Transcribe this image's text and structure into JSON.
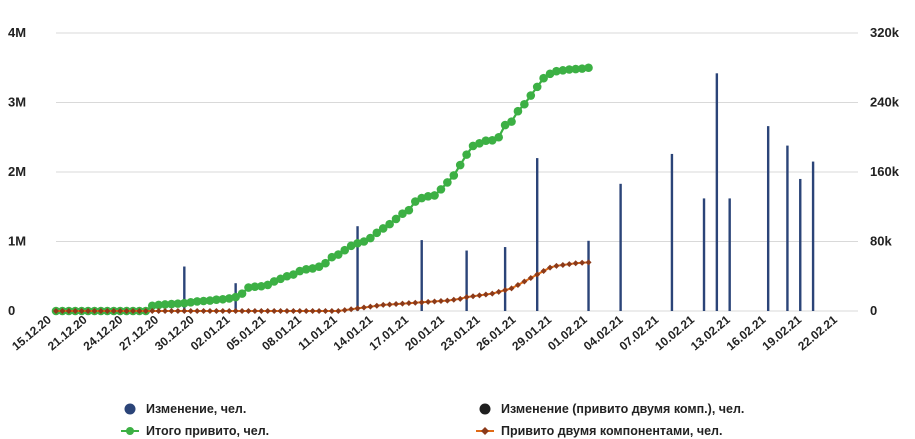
{
  "chart_data": {
    "type": "bar",
    "title": "",
    "xlabel": "",
    "ylabel_left": "",
    "ylabel_right": "",
    "x_tick_labels": [
      "15.12.20",
      "21.12.20",
      "24.12.20",
      "27.12.20",
      "30.12.20",
      "02.01.21",
      "05.01.21",
      "08.01.21",
      "11.01.21",
      "14.01.21",
      "17.01.21",
      "20.01.21",
      "23.01.21",
      "26.01.21",
      "29.01.21",
      "01.02.21",
      "04.02.21",
      "07.02.21",
      "10.02.21",
      "13.02.21",
      "16.02.21",
      "19.02.21",
      "22.02.21"
    ],
    "left_axis": {
      "range": [
        0,
        4000000
      ],
      "tick_labels": [
        "0",
        "1M",
        "2M",
        "3M",
        "4M"
      ]
    },
    "right_axis": {
      "range": [
        0,
        320000
      ],
      "tick_labels": [
        "0",
        "80k",
        "160k",
        "240k",
        "320k"
      ]
    },
    "grid": true,
    "legend_position": "bottom",
    "colors": {
      "change": "#2b4478",
      "change_two": "#1f1f1f",
      "total": "#3cb044",
      "two_comp": "#e06a15",
      "two_comp_marker": "#8b3a1a",
      "grid": "#d9d9d9"
    },
    "series": [
      {
        "name": "Изменение, чел.",
        "kind": "bar",
        "axis": "left",
        "start_date": "15.12.20",
        "values": [
          5000,
          5000,
          5000,
          5000,
          5000,
          5000,
          5000,
          5000,
          5000,
          5000,
          5000,
          5000,
          5000,
          5000,
          5000,
          5000,
          5000,
          5000,
          5000,
          5000,
          640000,
          5000,
          5000,
          5000,
          5000,
          5000,
          5000,
          5000,
          400000,
          5000,
          5000,
          5000,
          5000,
          5000,
          5000,
          5000,
          5000,
          5000,
          5000,
          5000,
          5000,
          5000,
          5000,
          5000,
          5000,
          5000,
          5000,
          1220000,
          5000,
          5000,
          5000,
          5000,
          5000,
          5000,
          5000,
          5000,
          5000,
          1020000,
          5000,
          5000,
          5000,
          5000,
          5000,
          5000,
          870000,
          5000,
          5000,
          5000,
          5000,
          5000,
          920000,
          5000,
          5000,
          5000,
          5000,
          2200000,
          5000,
          5000,
          5000,
          5000,
          5000,
          5000,
          5000,
          1010000,
          5000,
          5000,
          5000,
          5000,
          1830000,
          5000,
          5000,
          5000,
          5000,
          5000,
          5000,
          5000,
          2260000,
          5000,
          5000,
          5000,
          5000,
          1620000,
          5000,
          3420000,
          5000,
          1620000,
          5000,
          5000,
          5000,
          5000,
          5000,
          2660000,
          5000,
          5000,
          2380000,
          5000,
          1900000,
          5000,
          2150000,
          5000,
          5000,
          5000,
          5000,
          5000,
          5000,
          5000
        ],
        "note_values": "approximate daily bars; many days small"
      },
      {
        "name": "Изменение (привито двумя комп.), чел.",
        "kind": "bar",
        "axis": "left",
        "values": []
      },
      {
        "name": "Итого привито, чел.",
        "kind": "line",
        "axis": "right",
        "values": [
          0,
          0,
          0,
          0,
          0,
          0,
          0,
          0,
          0,
          0,
          0,
          0,
          0,
          0,
          0,
          6000,
          7000,
          7500,
          8000,
          8500,
          9000,
          10000,
          11000,
          11500,
          12000,
          13000,
          13500,
          14500,
          16000,
          20000,
          27000,
          28000,
          28500,
          30000,
          34000,
          37000,
          40000,
          42000,
          46000,
          48000,
          49000,
          51000,
          55000,
          62000,
          65000,
          70000,
          75000,
          78000,
          80000,
          84000,
          90000,
          95000,
          100000,
          106000,
          112000,
          116000,
          126000,
          130000,
          132000,
          133000,
          140000,
          148000,
          156000,
          168000,
          180000,
          190000,
          193000,
          196000,
          196500,
          200000,
          214000,
          218000,
          230000,
          238000,
          248000,
          258000,
          268000,
          273000,
          276000,
          277000,
          278000,
          278500,
          279000,
          280000
        ]
      },
      {
        "name": "Привито двумя компонентами, чел.",
        "kind": "line",
        "axis": "right",
        "values": [
          0,
          0,
          0,
          0,
          0,
          0,
          0,
          0,
          0,
          0,
          0,
          0,
          0,
          0,
          0,
          0,
          0,
          0,
          0,
          0,
          0,
          0,
          0,
          0,
          0,
          0,
          0,
          0,
          0,
          0,
          0,
          0,
          0,
          0,
          0,
          0,
          0,
          0,
          0,
          0,
          0,
          0,
          0,
          0,
          0,
          1000,
          2000,
          3000,
          4000,
          5000,
          6000,
          7000,
          7500,
          8000,
          8500,
          9000,
          9500,
          10000,
          10500,
          11000,
          11500,
          12000,
          13000,
          14000,
          16000,
          17000,
          18000,
          19000,
          20000,
          22000,
          24000,
          26000,
          30000,
          34000,
          38000,
          42000,
          46000,
          50000,
          52000,
          53000,
          54000,
          55000,
          55500,
          56000
        ]
      }
    ]
  }
}
